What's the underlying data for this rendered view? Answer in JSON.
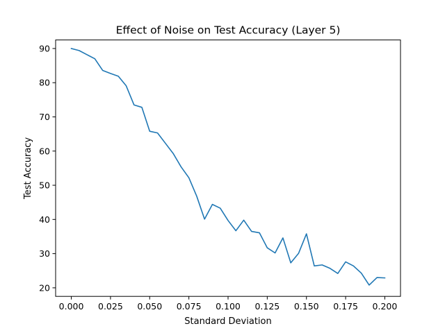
{
  "chart_data": {
    "type": "line",
    "title": "Effect of Noise on Test Accuracy (Layer 5)",
    "xlabel": "Standard Deviation",
    "ylabel": "Test Accuracy",
    "xlim": [
      -0.01,
      0.21
    ],
    "ylim": [
      17.5,
      92.5
    ],
    "xticks": [
      0.0,
      0.025,
      0.05,
      0.075,
      0.1,
      0.125,
      0.15,
      0.175,
      0.2
    ],
    "xtick_labels": [
      "0.000",
      "0.025",
      "0.050",
      "0.075",
      "0.100",
      "0.125",
      "0.150",
      "0.175",
      "0.200"
    ],
    "yticks": [
      20,
      30,
      40,
      50,
      60,
      70,
      80,
      90
    ],
    "ytick_labels": [
      "20",
      "30",
      "40",
      "50",
      "60",
      "70",
      "80",
      "90"
    ],
    "grid": false,
    "series": [
      {
        "color": "#1f77b4",
        "x": [
          0.0,
          0.005,
          0.01,
          0.015,
          0.02,
          0.025,
          0.03,
          0.035,
          0.04,
          0.045,
          0.05,
          0.055,
          0.06,
          0.065,
          0.07,
          0.075,
          0.08,
          0.085,
          0.09,
          0.095,
          0.1,
          0.105,
          0.11,
          0.115,
          0.12,
          0.125,
          0.13,
          0.135,
          0.14,
          0.145,
          0.15,
          0.155,
          0.16,
          0.165,
          0.17,
          0.175,
          0.18,
          0.185,
          0.19,
          0.195,
          0.2
        ],
        "y": [
          90.0,
          89.4,
          88.2,
          87.0,
          83.6,
          82.7,
          81.9,
          79.1,
          73.5,
          72.8,
          65.8,
          65.3,
          62.3,
          59.3,
          55.4,
          52.2,
          46.8,
          40.1,
          44.4,
          43.3,
          39.7,
          36.7,
          39.8,
          36.5,
          36.1,
          31.7,
          30.2,
          34.6,
          27.3,
          30.1,
          35.8,
          26.4,
          26.7,
          25.7,
          24.2,
          27.6,
          26.4,
          24.3,
          20.8,
          23.0,
          22.9
        ]
      }
    ]
  }
}
